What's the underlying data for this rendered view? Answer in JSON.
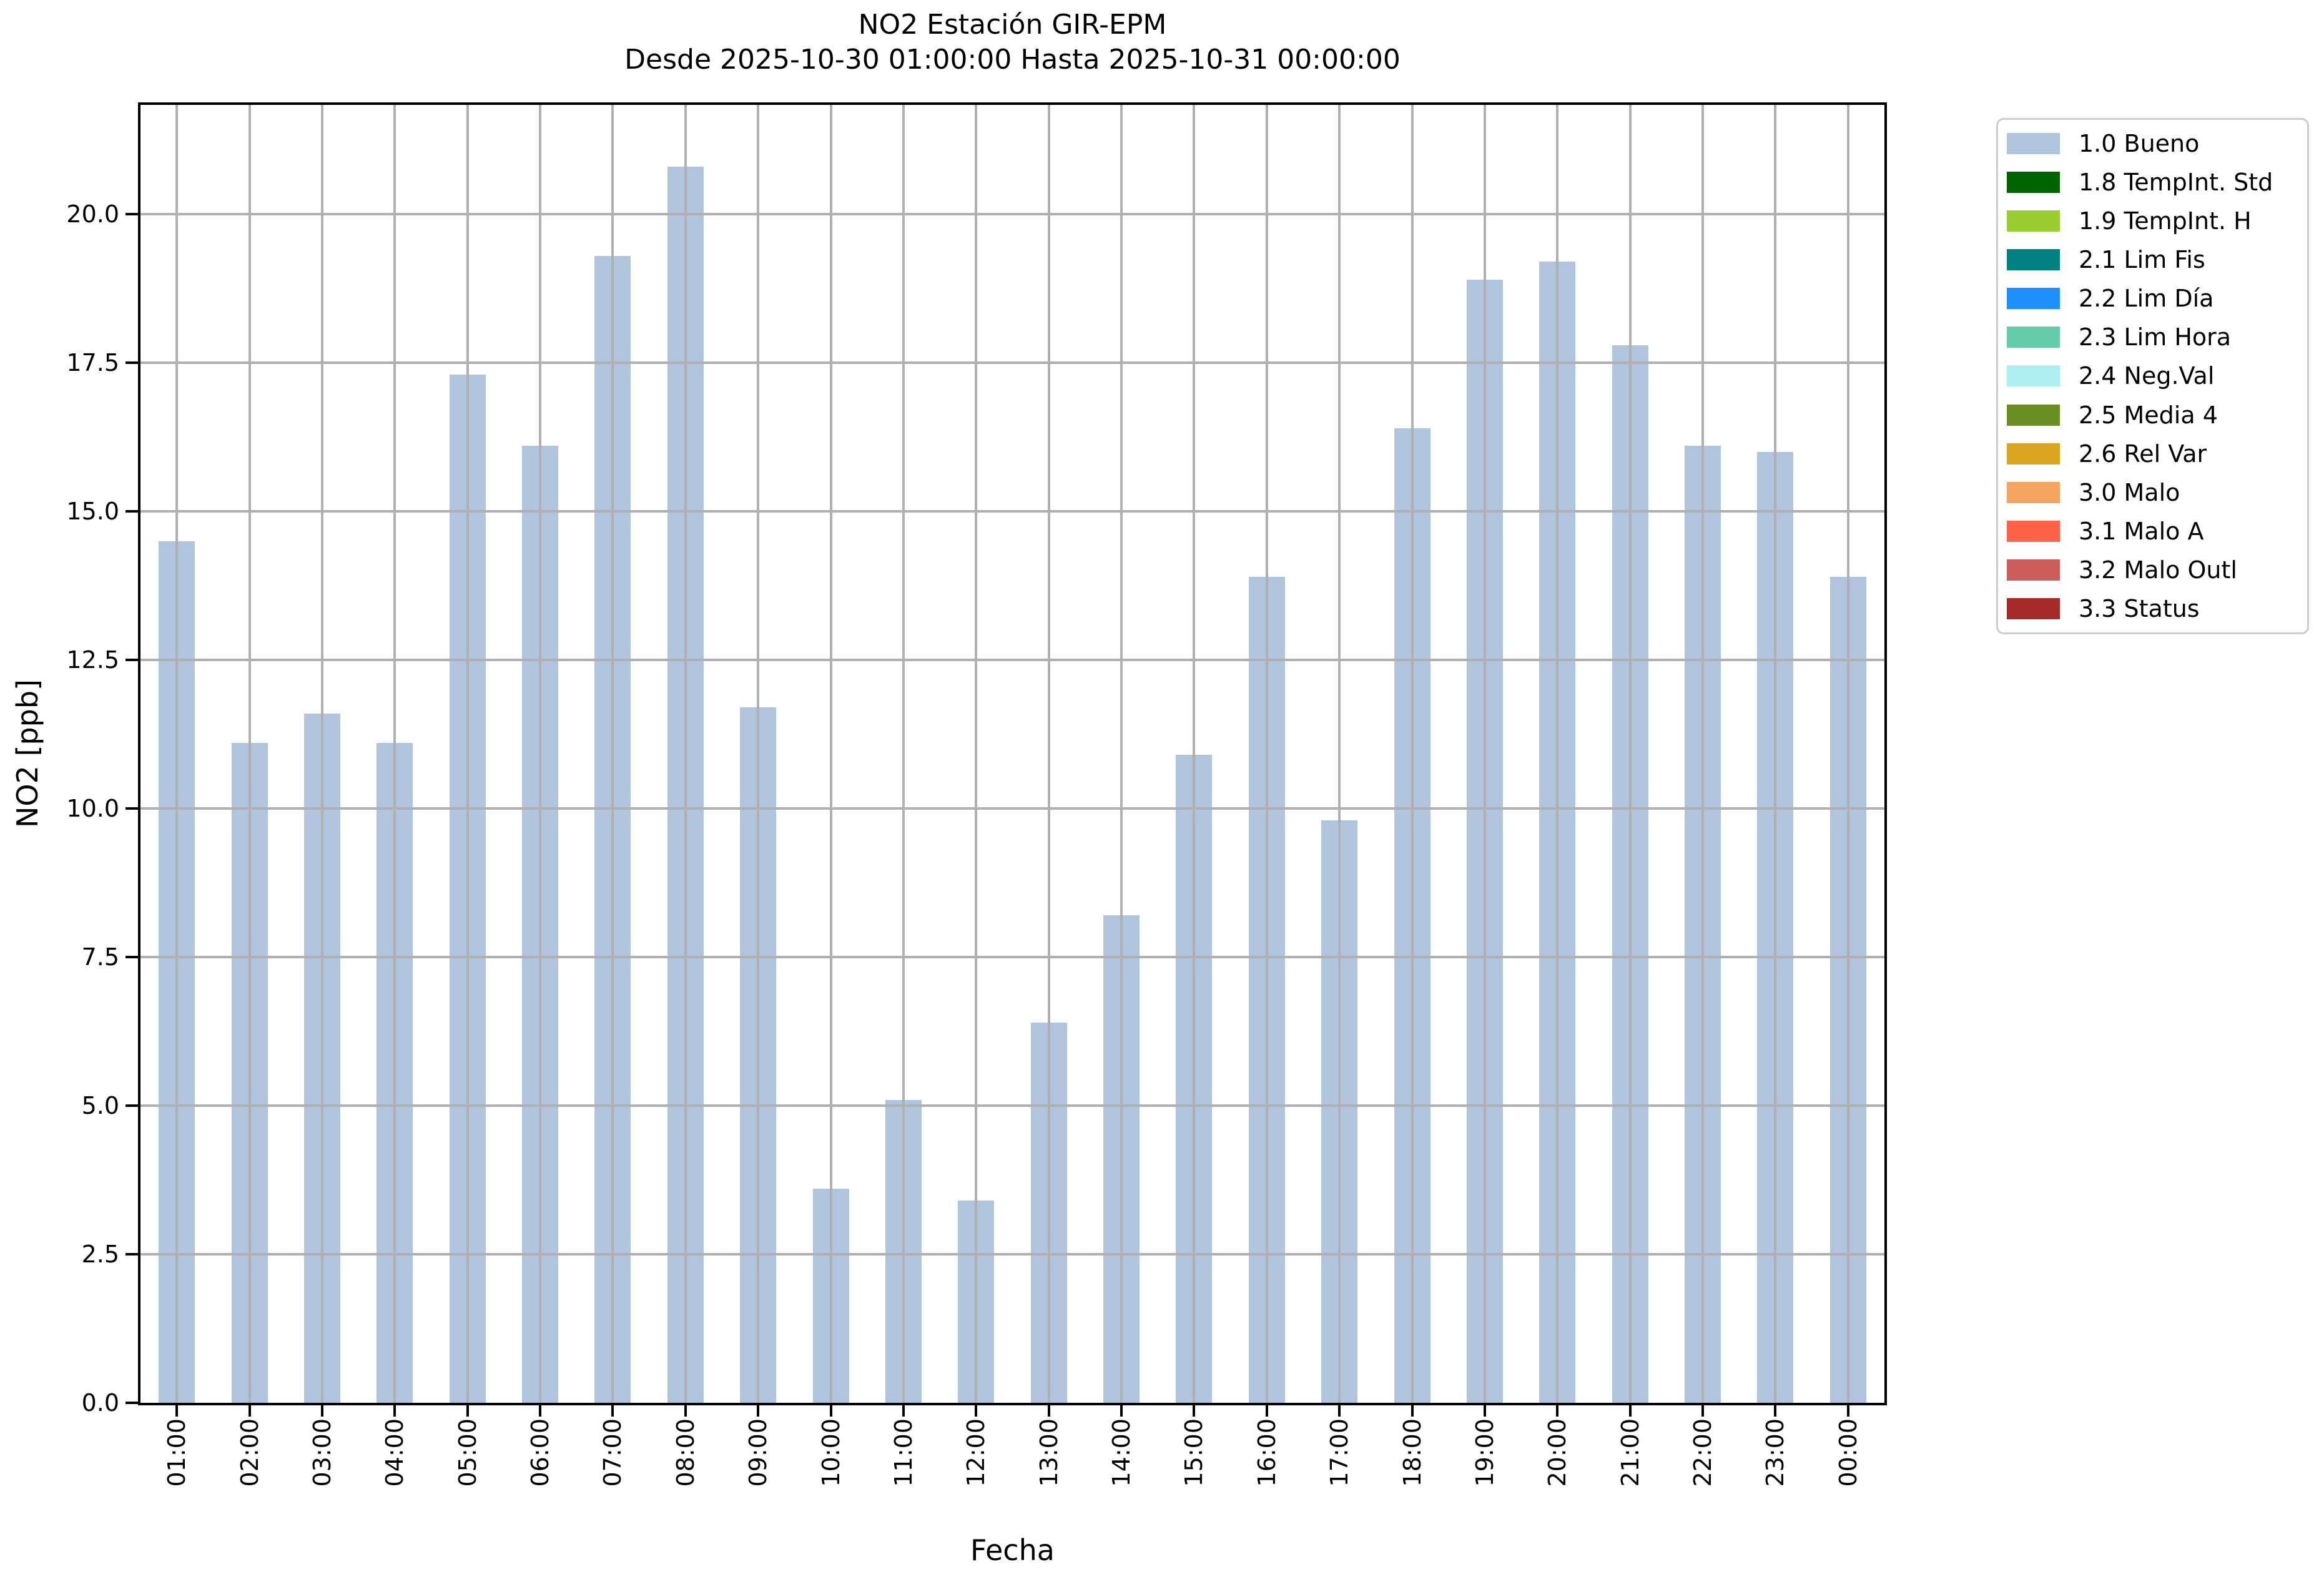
{
  "title": {
    "line1": "NO2 Estación GIR-EPM",
    "line2": "Desde 2025-10-30 01:00:00 Hasta 2025-10-31 00:00:00"
  },
  "axes": {
    "xlabel": "Fecha",
    "ylabel": "NO2 [ppb]",
    "ytick_labels": [
      "0.0",
      "2.5",
      "5.0",
      "7.5",
      "10.0",
      "12.5",
      "15.0",
      "17.5",
      "20.0"
    ],
    "yticks": [
      0,
      2.5,
      5,
      7.5,
      10,
      12.5,
      15,
      17.5,
      20
    ],
    "ylim": [
      0,
      21.84
    ],
    "grid": true
  },
  "legend": {
    "position": "outside-upper-right",
    "items": [
      {
        "label": "1.0 Bueno",
        "color": "#b0c4de"
      },
      {
        "label": "1.8 TempInt. Std",
        "color": "#006400"
      },
      {
        "label": "1.9 TempInt. H",
        "color": "#9acd32"
      },
      {
        "label": "2.1 Lim Fis",
        "color": "#008080"
      },
      {
        "label": "2.2 Lim Día",
        "color": "#1e90ff"
      },
      {
        "label": "2.3 Lim Hora",
        "color": "#66cdaa"
      },
      {
        "label": "2.4 Neg.Val",
        "color": "#afeeee"
      },
      {
        "label": "2.5 Media 4",
        "color": "#6b8e23"
      },
      {
        "label": "2.6 Rel Var",
        "color": "#daa520"
      },
      {
        "label": "3.0 Malo",
        "color": "#f4a460"
      },
      {
        "label": "3.1 Malo A",
        "color": "#ff6347"
      },
      {
        "label": "3.2 Malo Outl",
        "color": "#cd5c5c"
      },
      {
        "label": "3.3 Status",
        "color": "#a52a2a"
      }
    ]
  },
  "chart_data": {
    "type": "bar",
    "title": "NO2 Estación GIR-EPM",
    "subtitle": "Desde 2025-10-30 01:00:00 Hasta 2025-10-31 00:00:00",
    "xlabel": "Fecha",
    "ylabel": "NO2 [ppb]",
    "categories": [
      "01:00",
      "02:00",
      "03:00",
      "04:00",
      "05:00",
      "06:00",
      "07:00",
      "08:00",
      "09:00",
      "10:00",
      "11:00",
      "12:00",
      "13:00",
      "14:00",
      "15:00",
      "16:00",
      "17:00",
      "18:00",
      "19:00",
      "20:00",
      "21:00",
      "22:00",
      "23:00",
      "00:00"
    ],
    "series": [
      {
        "name": "1.0 Bueno",
        "color": "#b0c4de",
        "values": [
          14.5,
          11.1,
          11.6,
          11.1,
          17.3,
          16.1,
          19.3,
          20.8,
          11.7,
          3.6,
          5.1,
          3.4,
          6.4,
          8.2,
          10.9,
          13.9,
          9.8,
          16.4,
          18.9,
          19.2,
          17.8,
          16.1,
          16.0,
          13.9
        ]
      }
    ],
    "ylim": [
      0,
      21.84
    ],
    "grid": true,
    "legend_position": "outside upper right"
  },
  "colors": {
    "bar": "#b0c4de",
    "grid": "#b0b0b0",
    "axis": "#000000",
    "background": "#ffffff",
    "legend_border": "#cccccc"
  }
}
